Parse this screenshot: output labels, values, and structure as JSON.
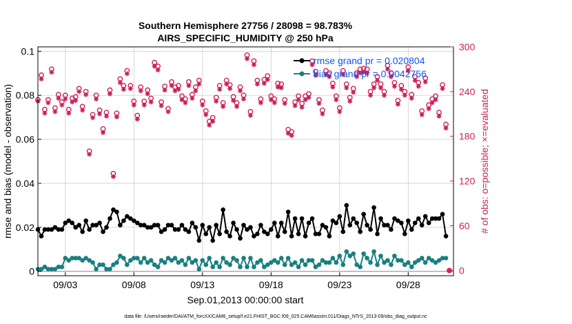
{
  "chart_data": {
    "type": "line",
    "title": "Southern Hemisphere 27756 / 28098 = 98.783%",
    "subtitle": "AIRS_SPECIFIC_HUMIDITY @ 250 hPa",
    "xlabel": "Sep.01,2013 00:00:00 start",
    "ylabel_left": "rmse and bias (model - observation)",
    "ylabel_right": "# of obs: o=possible; ×=evaluated",
    "footer": "data file: /Users/raeder/DAI/ATM_forcXX/CAM6_setup/f.e21.FHIST_BGC.f09_025.CAM6assim.011/Diags_NTrS_2013-09/obs_diag_output.nc",
    "xlim": [
      1.0,
      31.3
    ],
    "ylim_left": [
      -0.002,
      0.102
    ],
    "ylim_right": [
      -7.06,
      300
    ],
    "x_ticks": [
      {
        "value": 3,
        "label": "09/03"
      },
      {
        "value": 8,
        "label": "09/08"
      },
      {
        "value": 13,
        "label": "09/13"
      },
      {
        "value": 18,
        "label": "09/18"
      },
      {
        "value": 23,
        "label": "09/23"
      },
      {
        "value": 28,
        "label": "09/28"
      }
    ],
    "y_ticks_left": [
      {
        "value": 0,
        "label": "0"
      },
      {
        "value": 0.02,
        "label": "0.02"
      },
      {
        "value": 0.04,
        "label": "0.04"
      },
      {
        "value": 0.06,
        "label": "0.06"
      },
      {
        "value": 0.08,
        "label": "0.08"
      },
      {
        "value": 0.1,
        "label": "0.1"
      }
    ],
    "y_ticks_right": [
      {
        "value": 0,
        "label": "0"
      },
      {
        "value": 60,
        "label": "60"
      },
      {
        "value": 120,
        "label": "120"
      },
      {
        "value": 180,
        "label": "180"
      },
      {
        "value": 240,
        "label": "240"
      },
      {
        "value": 300,
        "label": "300"
      }
    ],
    "legend": {
      "placement": "top-right",
      "entries": [
        {
          "name": "rmse grand pr = 0.020804",
          "color": "#000000"
        },
        {
          "name": "bias grand pr = 0.0042756",
          "color": "#1a7f7f"
        }
      ]
    },
    "series": [
      {
        "name": "rmse",
        "color": "#000000",
        "axis": "left",
        "x": [
          1.0,
          1.25,
          1.5,
          1.75,
          2.0,
          2.25,
          2.5,
          2.75,
          3.0,
          3.25,
          3.5,
          3.75,
          4.0,
          4.25,
          4.5,
          4.75,
          5.0,
          5.25,
          5.5,
          5.75,
          6.0,
          6.25,
          6.5,
          6.75,
          7.0,
          7.25,
          7.5,
          7.75,
          8.0,
          8.25,
          8.5,
          8.75,
          9.0,
          9.25,
          9.5,
          9.75,
          10.0,
          10.25,
          10.5,
          10.75,
          11.0,
          11.25,
          11.5,
          11.75,
          12.0,
          12.25,
          12.5,
          12.75,
          13.0,
          13.25,
          13.5,
          13.75,
          14.0,
          14.25,
          14.5,
          14.75,
          15.0,
          15.25,
          15.5,
          15.75,
          16.0,
          16.25,
          16.5,
          16.75,
          17.0,
          17.25,
          17.5,
          17.75,
          18.0,
          18.25,
          18.5,
          18.75,
          19.0,
          19.25,
          19.5,
          19.75,
          20.0,
          20.25,
          20.5,
          20.75,
          21.0,
          21.25,
          21.5,
          21.75,
          22.0,
          22.25,
          22.5,
          22.75,
          23.0,
          23.25,
          23.5,
          23.75,
          24.0,
          24.25,
          24.5,
          24.75,
          25.0,
          25.25,
          25.5,
          25.75,
          26.0,
          26.25,
          26.5,
          26.75,
          27.0,
          27.25,
          27.5,
          27.75,
          28.0,
          28.25,
          28.5,
          28.75,
          29.0,
          29.25,
          29.5,
          29.75,
          30.0,
          30.25,
          30.5,
          30.75
        ],
        "y": [
          0.019,
          0.016,
          0.019,
          0.019,
          0.019,
          0.02,
          0.019,
          0.019,
          0.022,
          0.023,
          0.022,
          0.02,
          0.021,
          0.018,
          0.023,
          0.019,
          0.021,
          0.021,
          0.022,
          0.018,
          0.02,
          0.024,
          0.028,
          0.027,
          0.021,
          0.023,
          0.025,
          0.024,
          0.023,
          0.022,
          0.021,
          0.021,
          0.02,
          0.02,
          0.021,
          0.021,
          0.018,
          0.019,
          0.021,
          0.021,
          0.019,
          0.019,
          0.021,
          0.019,
          0.018,
          0.022,
          0.02,
          0.014,
          0.021,
          0.017,
          0.02,
          0.014,
          0.021,
          0.017,
          0.028,
          0.018,
          0.016,
          0.022,
          0.019,
          0.015,
          0.021,
          0.019,
          0.02,
          0.016,
          0.017,
          0.021,
          0.018,
          0.017,
          0.019,
          0.022,
          0.016,
          0.022,
          0.018,
          0.027,
          0.016,
          0.024,
          0.017,
          0.024,
          0.016,
          0.022,
          0.024,
          0.017,
          0.017,
          0.021,
          0.02,
          0.016,
          0.023,
          0.022,
          0.025,
          0.018,
          0.03,
          0.021,
          0.024,
          0.022,
          0.018,
          0.026,
          0.021,
          0.019,
          0.029,
          0.017,
          0.024,
          0.021,
          0.021,
          0.019,
          0.024,
          0.023,
          0.022,
          0.017,
          0.023,
          0.019,
          0.022,
          0.024,
          0.021,
          0.025,
          0.022,
          0.024,
          0.024,
          0.024,
          0.026,
          0.016
        ]
      },
      {
        "name": "bias",
        "color": "#1a7f7f",
        "axis": "left",
        "x": [
          1.0,
          1.25,
          1.5,
          1.75,
          2.0,
          2.25,
          2.5,
          2.75,
          3.0,
          3.25,
          3.5,
          3.75,
          4.0,
          4.25,
          4.5,
          4.75,
          5.0,
          5.25,
          5.5,
          5.75,
          6.0,
          6.25,
          6.5,
          6.75,
          7.0,
          7.25,
          7.5,
          7.75,
          8.0,
          8.25,
          8.5,
          8.75,
          9.0,
          9.25,
          9.5,
          9.75,
          10.0,
          10.25,
          10.5,
          10.75,
          11.0,
          11.25,
          11.5,
          11.75,
          12.0,
          12.25,
          12.5,
          12.75,
          13.0,
          13.25,
          13.5,
          13.75,
          14.0,
          14.25,
          14.5,
          14.75,
          15.0,
          15.25,
          15.5,
          15.75,
          16.0,
          16.25,
          16.5,
          16.75,
          17.0,
          17.25,
          17.5,
          17.75,
          18.0,
          18.25,
          18.5,
          18.75,
          19.0,
          19.25,
          19.5,
          19.75,
          20.0,
          20.25,
          20.5,
          20.75,
          21.0,
          21.25,
          21.5,
          21.75,
          22.0,
          22.25,
          22.5,
          22.75,
          23.0,
          23.25,
          23.5,
          23.75,
          24.0,
          24.25,
          24.5,
          24.75,
          25.0,
          25.25,
          25.5,
          25.75,
          26.0,
          26.25,
          26.5,
          26.75,
          27.0,
          27.25,
          27.5,
          27.75,
          28.0,
          28.25,
          28.5,
          28.75,
          29.0,
          29.25,
          29.5,
          29.75,
          30.0,
          30.25,
          30.5,
          30.75
        ],
        "y": [
          0.001,
          0.001,
          0.002,
          0.001,
          0.001,
          0.001,
          0.002,
          0.002,
          0.006,
          0.005,
          0.006,
          0.006,
          0.006,
          0.005,
          0.006,
          0.005,
          0.004,
          0.001,
          0.003,
          0.003,
          0.001,
          0.001,
          0.003,
          0.004,
          0.007,
          0.006,
          0.003,
          0.005,
          0.006,
          0.006,
          0.004,
          0.006,
          0.004,
          0.005,
          0.003,
          0.002,
          0.005,
          0.004,
          0.006,
          0.005,
          0.006,
          0.004,
          0.005,
          0.003,
          0.006,
          0.004,
          0.005,
          0.001,
          0.005,
          0.003,
          0.006,
          0.002,
          0.004,
          0.002,
          0.006,
          0.004,
          0.003,
          0.006,
          0.005,
          0.002,
          0.006,
          0.002,
          0.006,
          0.002,
          0.004,
          0.005,
          0.002,
          0.003,
          0.004,
          0.005,
          0.004,
          0.006,
          0.003,
          0.006,
          0.003,
          0.004,
          0.002,
          0.005,
          0.003,
          0.005,
          0.005,
          0.002,
          0.003,
          0.005,
          0.004,
          0.004,
          0.006,
          0.004,
          0.007,
          0.003,
          0.009,
          0.007,
          0.008,
          0.003,
          0.002,
          0.008,
          0.006,
          0.004,
          0.009,
          0.003,
          0.007,
          0.004,
          0.005,
          0.003,
          0.007,
          0.005,
          0.005,
          0.003,
          0.004,
          0.002,
          0.004,
          0.005,
          0.006,
          0.004,
          0.006,
          0.005,
          0.004,
          0.005,
          0.006,
          0.006
        ]
      },
      {
        "name": "# obs possible",
        "color": "#cc1f5a",
        "axis": "right",
        "marker": "o",
        "x": [
          1.0,
          1.25,
          1.5,
          1.75,
          2.0,
          2.25,
          2.5,
          2.75,
          3.0,
          3.25,
          3.5,
          3.75,
          4.0,
          4.25,
          4.5,
          4.75,
          5.0,
          5.25,
          5.5,
          5.75,
          6.0,
          6.25,
          6.5,
          6.75,
          7.0,
          7.25,
          7.5,
          7.75,
          8.0,
          8.25,
          8.5,
          8.75,
          9.0,
          9.25,
          9.5,
          9.75,
          10.0,
          10.25,
          10.5,
          10.75,
          11.0,
          11.25,
          11.5,
          11.75,
          12.0,
          12.25,
          12.5,
          12.75,
          13.0,
          13.25,
          13.5,
          13.75,
          14.0,
          14.25,
          14.5,
          14.75,
          15.0,
          15.25,
          15.5,
          15.75,
          16.0,
          16.25,
          16.5,
          16.75,
          17.0,
          17.25,
          17.5,
          17.75,
          18.0,
          18.25,
          18.5,
          18.75,
          19.0,
          19.25,
          19.5,
          19.75,
          20.0,
          20.25,
          20.5,
          20.75,
          21.0,
          21.25,
          21.5,
          21.75,
          22.0,
          22.25,
          22.5,
          22.75,
          23.0,
          23.25,
          23.5,
          23.75,
          24.0,
          24.25,
          24.5,
          24.75,
          25.0,
          25.25,
          25.5,
          25.75,
          26.0,
          26.25,
          26.5,
          26.75,
          27.0,
          27.25,
          27.5,
          27.75,
          28.0,
          28.25,
          28.5,
          28.75,
          29.0,
          29.25,
          29.5,
          29.75,
          30.0,
          30.25,
          30.5,
          30.75,
          31.0
        ],
        "y": [
          229,
          262,
          216,
          229,
          270,
          218,
          236,
          226,
          235,
          216,
          231,
          233,
          244,
          220,
          240,
          160,
          209,
          235,
          215,
          190,
          212,
          242,
          130,
          211,
          257,
          248,
          268,
          248,
          227,
          208,
          246,
          227,
          242,
          231,
          279,
          274,
          226,
          247,
          217,
          253,
          246,
          248,
          234,
          230,
          253,
          236,
          246,
          255,
          227,
          214,
          200,
          205,
          232,
          248,
          225,
          255,
          249,
          233,
          225,
          246,
          235,
          289,
          213,
          281,
          255,
          230,
          256,
          261,
          234,
          230,
          251,
          250,
          229,
          189,
          186,
          226,
          234,
          224,
          234,
          237,
          281,
          267,
          229,
          215,
          268,
          265,
          251,
          234,
          218,
          268,
          250,
          232,
          244,
          265,
          270,
          271,
          270,
          240,
          250,
          260,
          250,
          240,
          275,
          265,
          252,
          228,
          248,
          240,
          273,
          236,
          260,
          252,
          214,
          258,
          222,
          230,
          234,
          212,
          249,
          196,
          0
        ]
      },
      {
        "name": "# obs evaluated",
        "color": "#cc1f5a",
        "axis": "right",
        "marker": "*",
        "x": [
          1.0,
          1.25,
          1.5,
          1.75,
          2.0,
          2.25,
          2.5,
          2.75,
          3.0,
          3.25,
          3.5,
          3.75,
          4.0,
          4.25,
          4.5,
          4.75,
          5.0,
          5.25,
          5.5,
          5.75,
          6.0,
          6.25,
          6.5,
          6.75,
          7.0,
          7.25,
          7.5,
          7.75,
          8.0,
          8.25,
          8.5,
          8.75,
          9.0,
          9.25,
          9.5,
          9.75,
          10.0,
          10.25,
          10.5,
          10.75,
          11.0,
          11.25,
          11.5,
          11.75,
          12.0,
          12.25,
          12.5,
          12.75,
          13.0,
          13.25,
          13.5,
          13.75,
          14.0,
          14.25,
          14.5,
          14.75,
          15.0,
          15.25,
          15.5,
          15.75,
          16.0,
          16.25,
          16.5,
          16.75,
          17.0,
          17.25,
          17.5,
          17.75,
          18.0,
          18.25,
          18.5,
          18.75,
          19.0,
          19.25,
          19.5,
          19.75,
          20.0,
          20.25,
          20.5,
          20.75,
          21.0,
          21.25,
          21.5,
          21.75,
          22.0,
          22.25,
          22.5,
          22.75,
          23.0,
          23.25,
          23.5,
          23.75,
          24.0,
          24.25,
          24.5,
          24.75,
          25.0,
          25.25,
          25.5,
          25.75,
          26.0,
          26.25,
          26.5,
          26.75,
          27.0,
          27.25,
          27.5,
          27.75,
          28.0,
          28.25,
          28.5,
          28.75,
          29.0,
          29.25,
          29.5,
          29.75,
          30.0,
          30.25,
          30.5,
          30.75,
          31.0
        ],
        "y": [
          227,
          257,
          211,
          225,
          266,
          213,
          231,
          222,
          230,
          211,
          226,
          228,
          240,
          215,
          236,
          156,
          205,
          230,
          210,
          185,
          207,
          237,
          126,
          206,
          252,
          243,
          264,
          244,
          222,
          203,
          241,
          222,
          237,
          226,
          274,
          269,
          221,
          242,
          213,
          248,
          241,
          243,
          229,
          225,
          248,
          231,
          241,
          250,
          222,
          209,
          195,
          200,
          227,
          243,
          220,
          250,
          244,
          228,
          220,
          241,
          230,
          284,
          208,
          276,
          250,
          225,
          251,
          256,
          229,
          225,
          246,
          245,
          224,
          184,
          181,
          221,
          229,
          219,
          229,
          232,
          276,
          262,
          224,
          210,
          263,
          260,
          246,
          229,
          213,
          263,
          245,
          227,
          239,
          260,
          265,
          266,
          265,
          235,
          245,
          255,
          245,
          235,
          270,
          260,
          247,
          223,
          243,
          235,
          268,
          231,
          255,
          247,
          209,
          253,
          217,
          225,
          229,
          207,
          244,
          191,
          0
        ]
      }
    ]
  }
}
